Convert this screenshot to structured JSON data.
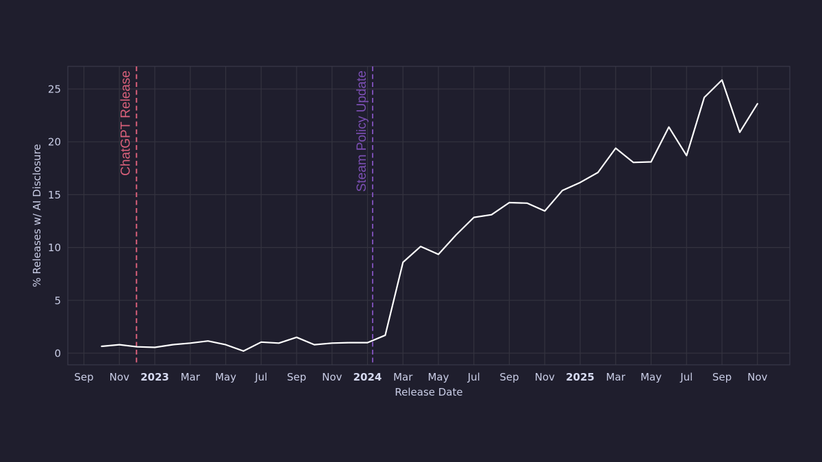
{
  "chart_data": {
    "type": "line",
    "title": "",
    "xlabel": "Release Date",
    "ylabel": "% Releases w/ AI Disclosure",
    "ylim": [
      -1.1,
      27.1
    ],
    "yticks": [
      0,
      5,
      10,
      15,
      20,
      25
    ],
    "grid": true,
    "legend": null,
    "xticks": [
      {
        "label": "Sep",
        "date": "2022-09",
        "bold": false
      },
      {
        "label": "Nov",
        "date": "2022-11",
        "bold": false
      },
      {
        "label": "2023",
        "date": "2023-01",
        "bold": true
      },
      {
        "label": "Mar",
        "date": "2023-03",
        "bold": false
      },
      {
        "label": "May",
        "date": "2023-05",
        "bold": false
      },
      {
        "label": "Jul",
        "date": "2023-07",
        "bold": false
      },
      {
        "label": "Sep",
        "date": "2023-09",
        "bold": false
      },
      {
        "label": "Nov",
        "date": "2023-11",
        "bold": false
      },
      {
        "label": "2024",
        "date": "2024-01",
        "bold": true
      },
      {
        "label": "Mar",
        "date": "2024-03",
        "bold": false
      },
      {
        "label": "May",
        "date": "2024-05",
        "bold": false
      },
      {
        "label": "Jul",
        "date": "2024-07",
        "bold": false
      },
      {
        "label": "Sep",
        "date": "2024-09",
        "bold": false
      },
      {
        "label": "Nov",
        "date": "2024-11",
        "bold": false
      },
      {
        "label": "2025",
        "date": "2025-01",
        "bold": true
      },
      {
        "label": "Mar",
        "date": "2025-03",
        "bold": false
      },
      {
        "label": "May",
        "date": "2025-05",
        "bold": false
      },
      {
        "label": "Jul",
        "date": "2025-07",
        "bold": false
      },
      {
        "label": "Sep",
        "date": "2025-09",
        "bold": false
      },
      {
        "label": "Nov",
        "date": "2025-11",
        "bold": false
      }
    ],
    "series": [
      {
        "name": "% Releases w/ AI Disclosure",
        "color": "#ffffff",
        "x": [
          "2022-10",
          "2022-11",
          "2022-12",
          "2023-01",
          "2023-02",
          "2023-03",
          "2023-04",
          "2023-05",
          "2023-06",
          "2023-07",
          "2023-08",
          "2023-09",
          "2023-10",
          "2023-11",
          "2023-12",
          "2024-01",
          "2024-02",
          "2024-03",
          "2024-04",
          "2024-05",
          "2024-06",
          "2024-07",
          "2024-08",
          "2024-09",
          "2024-10",
          "2024-11",
          "2024-12",
          "2025-01",
          "2025-02",
          "2025-03",
          "2025-04",
          "2025-05",
          "2025-06",
          "2025-07",
          "2025-08",
          "2025-09",
          "2025-10",
          "2025-11"
        ],
        "values": [
          0.65,
          0.8,
          0.6,
          0.55,
          0.8,
          0.95,
          1.15,
          0.8,
          0.2,
          1.05,
          0.95,
          1.5,
          0.8,
          0.95,
          1.0,
          1.0,
          1.7,
          8.6,
          10.1,
          9.35,
          11.2,
          12.85,
          13.1,
          14.25,
          14.2,
          13.45,
          15.4,
          16.15,
          17.1,
          19.4,
          18.05,
          18.1,
          21.4,
          18.7,
          24.2,
          25.85,
          20.9,
          23.6
        ]
      }
    ],
    "annotations": [
      {
        "label": "ChatGPT Release",
        "date": "2022-11-30",
        "color": "#d9607a",
        "style": "dashed vertical line"
      },
      {
        "label": "Steam Policy Update",
        "date": "2024-01-10",
        "color": "#7b4fb3",
        "style": "dashed vertical line"
      }
    ]
  },
  "style": {
    "background": "#1f1e2d",
    "grid_color": "#34333f",
    "frame_color": "#3a394a",
    "line_color": "#ffffff"
  }
}
